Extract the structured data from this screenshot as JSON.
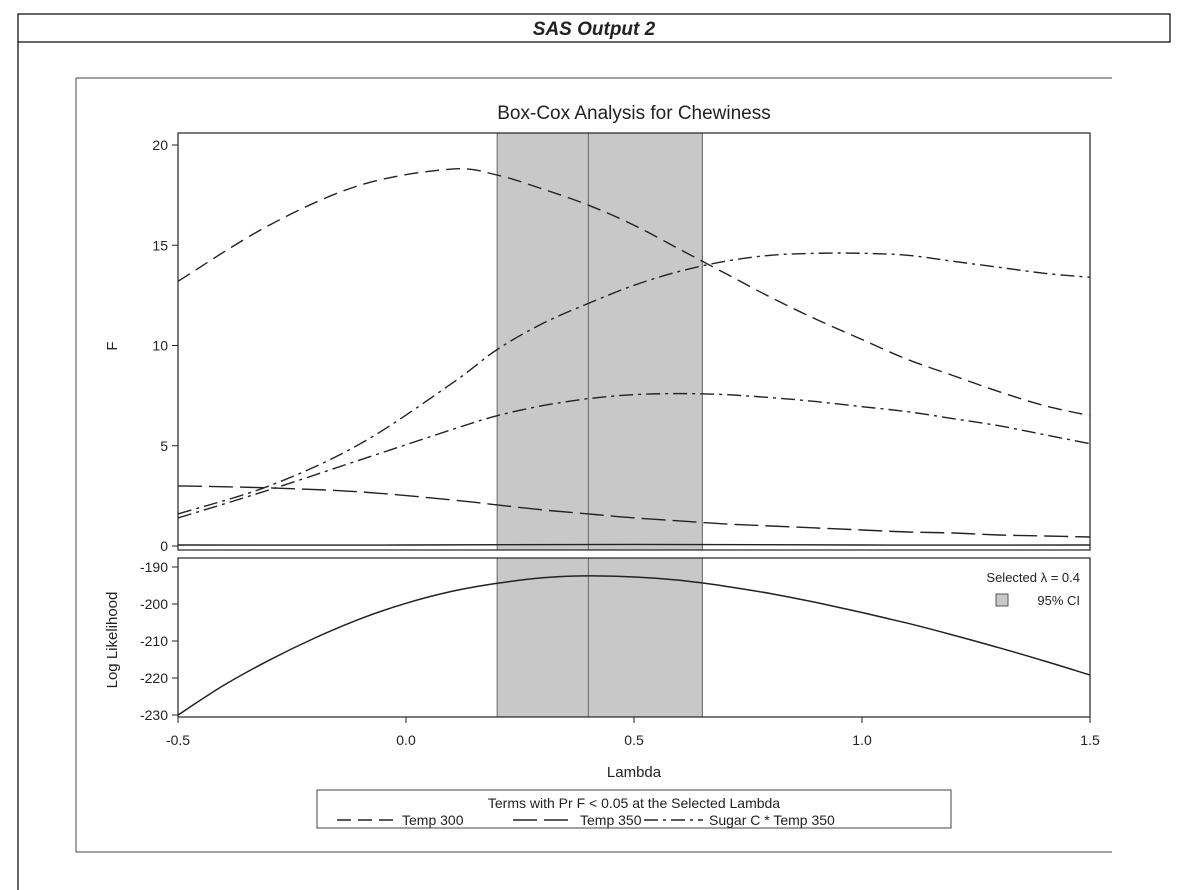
{
  "header": {
    "title": "SAS Output 2"
  },
  "chart_data": {
    "type": "line",
    "title": "Box-Cox Analysis for Chewiness",
    "xlabel": "Lambda",
    "xlim": [
      -0.5,
      1.5
    ],
    "x_ticks": [
      "-0.5",
      "0.0",
      "0.5",
      "1.0",
      "1.5"
    ],
    "x_tick_values": [
      -0.5,
      0,
      0.5,
      1,
      1.5
    ],
    "selected_lambda": 0.4,
    "ci": [
      0.2,
      0.65
    ],
    "annotation_selected": "Selected λ = 0.4",
    "annotation_ci": "95% CI",
    "grid": false,
    "top_panel": {
      "ylabel": "F",
      "ylim": [
        0,
        20
      ],
      "y_ticks": [
        "0",
        "5",
        "10",
        "15",
        "20"
      ],
      "y_tick_values": [
        0,
        5,
        10,
        15,
        20
      ],
      "series": [
        {
          "name": "Temp 300",
          "dash": "dash",
          "x": [
            -0.5,
            -0.3,
            -0.1,
            0.1,
            0.2,
            0.3,
            0.4,
            0.5,
            0.6,
            0.7,
            0.8,
            0.9,
            1.0,
            1.1,
            1.2,
            1.3,
            1.4,
            1.5
          ],
          "values": [
            13.2,
            16.0,
            18.0,
            18.8,
            18.5,
            17.8,
            17.0,
            16.0,
            14.8,
            13.6,
            12.4,
            11.3,
            10.3,
            9.3,
            8.5,
            7.7,
            7.0,
            6.5
          ]
        },
        {
          "name": "Temp 350",
          "dash": "longdash",
          "x": [
            -0.5,
            -0.3,
            -0.1,
            0.1,
            0.2,
            0.3,
            0.4,
            0.5,
            0.6,
            0.7,
            0.8,
            0.9,
            1.0,
            1.1,
            1.2,
            1.3,
            1.4,
            1.5
          ],
          "values": [
            3.0,
            2.9,
            2.7,
            2.3,
            2.05,
            1.8,
            1.6,
            1.4,
            1.25,
            1.1,
            1.0,
            0.9,
            0.8,
            0.7,
            0.65,
            0.55,
            0.5,
            0.45
          ]
        },
        {
          "name": "Sugar C * Temp 350",
          "dash": "dashdot",
          "x": [
            -0.5,
            -0.3,
            -0.1,
            0.1,
            0.2,
            0.3,
            0.4,
            0.5,
            0.6,
            0.7,
            0.8,
            0.9,
            1.0,
            1.1,
            1.2,
            1.3,
            1.4,
            1.5
          ],
          "values": [
            1.6,
            3.0,
            5.1,
            8.1,
            9.8,
            11.1,
            12.1,
            13.0,
            13.7,
            14.2,
            14.5,
            14.6,
            14.6,
            14.5,
            14.2,
            13.9,
            13.6,
            13.4
          ]
        },
        {
          "name": "",
          "dash": "dashdot",
          "x": [
            -0.5,
            -0.3,
            -0.1,
            0.1,
            0.2,
            0.3,
            0.4,
            0.5,
            0.6,
            0.7,
            0.8,
            0.9,
            1.0,
            1.1,
            1.2,
            1.3,
            1.4,
            1.5
          ],
          "values": [
            1.4,
            2.8,
            4.3,
            5.8,
            6.5,
            7.0,
            7.35,
            7.55,
            7.6,
            7.55,
            7.4,
            7.2,
            6.95,
            6.7,
            6.35,
            6.0,
            5.55,
            5.1
          ]
        },
        {
          "name": "",
          "dash": "solid",
          "x": [
            -0.5,
            0.0,
            0.5,
            1.0,
            1.5
          ],
          "values": [
            0.05,
            0.05,
            0.08,
            0.05,
            0.05
          ]
        }
      ]
    },
    "bottom_panel": {
      "ylabel": "Log Likelihood",
      "ylim": [
        -230,
        -189
      ],
      "y_ticks": [
        "-190",
        "-200",
        "-210",
        "-220",
        "-230"
      ],
      "y_tick_values": [
        -190,
        -200,
        -210,
        -220,
        -230
      ],
      "series": [
        {
          "name": "",
          "dash": "solid",
          "x": [
            -0.5,
            -0.4,
            -0.3,
            -0.2,
            -0.1,
            0.0,
            0.1,
            0.2,
            0.3,
            0.4,
            0.5,
            0.6,
            0.7,
            0.8,
            0.9,
            1.0,
            1.1,
            1.2,
            1.3,
            1.4,
            1.5
          ],
          "values": [
            -230.0,
            -222.0,
            -215.2,
            -209.2,
            -204.0,
            -199.8,
            -196.6,
            -194.4,
            -192.9,
            -192.4,
            -192.7,
            -193.6,
            -195.2,
            -197.2,
            -199.6,
            -202.3,
            -205.2,
            -208.4,
            -211.8,
            -215.4,
            -219.2
          ]
        }
      ]
    },
    "legend": {
      "title": "Terms with Pr F < 0.05 at the Selected Lambda",
      "placement": "bottom",
      "entries": [
        {
          "label": "Temp 300",
          "dash": "dash"
        },
        {
          "label": "Temp 350",
          "dash": "longdash"
        },
        {
          "label": "Sugar C * Temp 350",
          "dash": "dashdot"
        }
      ]
    }
  }
}
